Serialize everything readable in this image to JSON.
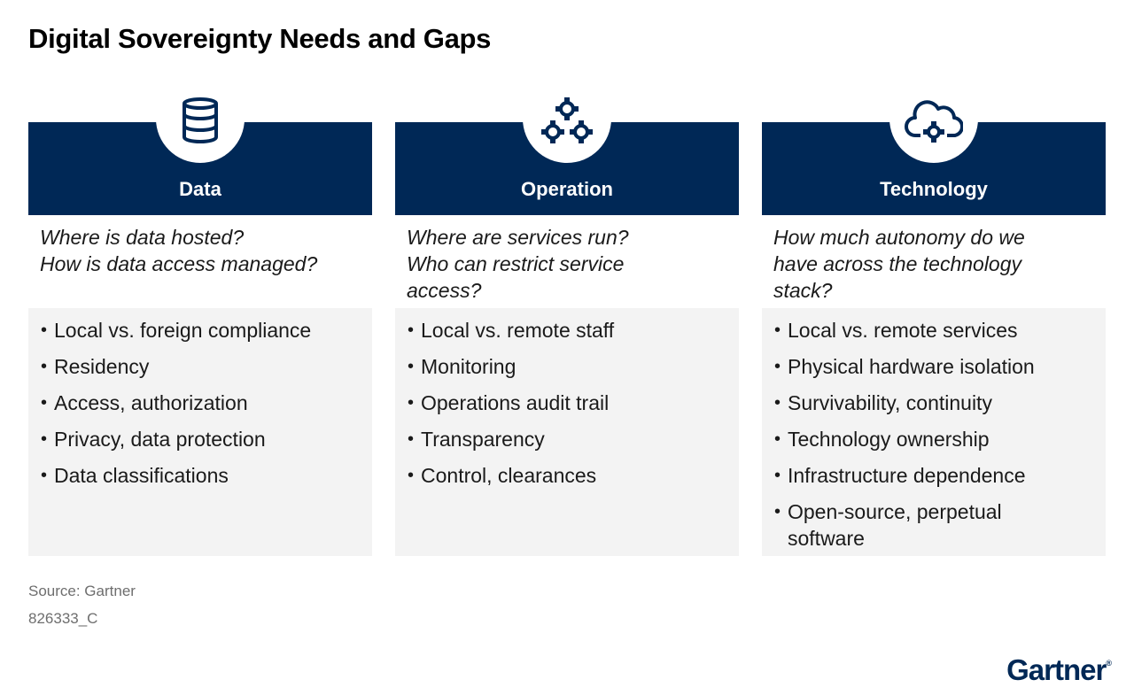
{
  "title": "Digital Sovereignty Needs and Gaps",
  "colors": {
    "header": "#002856",
    "list_bg": "#f3f3f3"
  },
  "columns": [
    {
      "label": "Data",
      "icon": "database-icon",
      "questions": [
        "Where is data hosted?",
        "How is data access managed?"
      ],
      "items": [
        "Local vs. foreign compliance",
        "Residency",
        "Access, authorization",
        "Privacy, data protection",
        "Data classifications"
      ]
    },
    {
      "label": "Operation",
      "icon": "gears-icon",
      "questions": [
        "Where are services run?",
        "Who can restrict service",
        "access?"
      ],
      "items": [
        "Local vs. remote staff",
        "Monitoring",
        "Operations audit trail",
        "Transparency",
        "Control, clearances"
      ]
    },
    {
      "label": "Technology",
      "icon": "cloud-gear-icon",
      "questions": [
        "How much autonomy do we",
        "have across the technology",
        "stack?"
      ],
      "items": [
        "Local vs. remote services",
        "Physical hardware isolation",
        "Survivability, continuity",
        "Technology ownership",
        "Infrastructure dependence",
        "Open-source, perpetual software"
      ]
    }
  ],
  "footer": {
    "source": "Source: Gartner",
    "code": "826333_C"
  },
  "logo": {
    "text": "Gartner"
  }
}
